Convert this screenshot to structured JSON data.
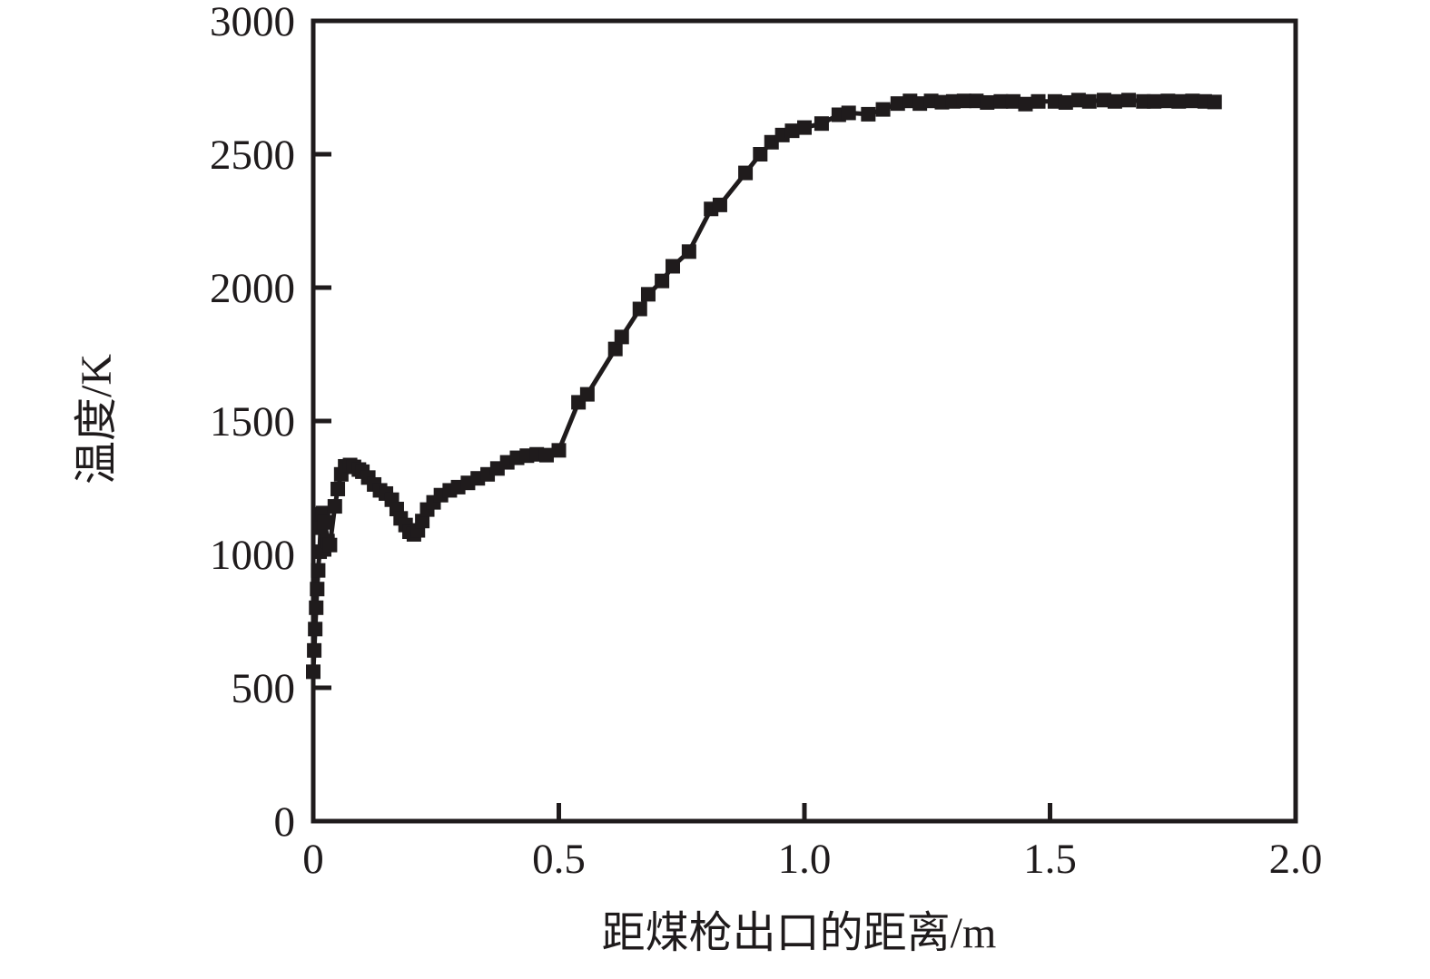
{
  "figure": {
    "background_color": "#ffffff",
    "line_color": "#1f1b1c",
    "marker_shape": "square"
  },
  "chart_data": {
    "type": "line",
    "title": "",
    "xlabel": "距煤枪出口的距离/m",
    "ylabel": "温度/K",
    "xlim": [
      0,
      2.0
    ],
    "ylim": [
      0,
      3000
    ],
    "grid": false,
    "legend": "none",
    "x_ticks": [
      {
        "value": 0,
        "label": "0"
      },
      {
        "value": 0.5,
        "label": "0.5"
      },
      {
        "value": 1.0,
        "label": "1.0"
      },
      {
        "value": 1.5,
        "label": "1.5"
      },
      {
        "value": 2.0,
        "label": "2.0"
      }
    ],
    "y_ticks": [
      {
        "value": 0,
        "label": "0"
      },
      {
        "value": 500,
        "label": "500"
      },
      {
        "value": 1000,
        "label": "1000"
      },
      {
        "value": 1500,
        "label": "1500"
      },
      {
        "value": 2000,
        "label": "2000"
      },
      {
        "value": 2500,
        "label": "2500"
      },
      {
        "value": 3000,
        "label": "3000"
      }
    ],
    "series": [
      {
        "name": "温度",
        "points": [
          [
            0.0,
            560
          ],
          [
            0.002,
            640
          ],
          [
            0.004,
            720
          ],
          [
            0.006,
            800
          ],
          [
            0.008,
            870
          ],
          [
            0.01,
            940
          ],
          [
            0.013,
            1010
          ],
          [
            0.015,
            1100
          ],
          [
            0.017,
            1150
          ],
          [
            0.02,
            1155
          ],
          [
            0.024,
            1120
          ],
          [
            0.029,
            1050
          ],
          [
            0.034,
            1035
          ],
          [
            0.044,
            1180
          ],
          [
            0.05,
            1245
          ],
          [
            0.057,
            1300
          ],
          [
            0.065,
            1330
          ],
          [
            0.075,
            1335
          ],
          [
            0.083,
            1328
          ],
          [
            0.093,
            1318
          ],
          [
            0.1,
            1310
          ],
          [
            0.112,
            1288
          ],
          [
            0.124,
            1262
          ],
          [
            0.136,
            1240
          ],
          [
            0.148,
            1228
          ],
          [
            0.16,
            1205
          ],
          [
            0.17,
            1170
          ],
          [
            0.178,
            1135
          ],
          [
            0.188,
            1110
          ],
          [
            0.196,
            1085
          ],
          [
            0.205,
            1075
          ],
          [
            0.213,
            1090
          ],
          [
            0.222,
            1125
          ],
          [
            0.232,
            1168
          ],
          [
            0.245,
            1195
          ],
          [
            0.26,
            1222
          ],
          [
            0.278,
            1240
          ],
          [
            0.295,
            1252
          ],
          [
            0.315,
            1268
          ],
          [
            0.335,
            1285
          ],
          [
            0.355,
            1300
          ],
          [
            0.375,
            1322
          ],
          [
            0.395,
            1345
          ],
          [
            0.415,
            1362
          ],
          [
            0.435,
            1370
          ],
          [
            0.455,
            1375
          ],
          [
            0.475,
            1372
          ],
          [
            0.5,
            1390
          ],
          [
            0.54,
            1570
          ],
          [
            0.558,
            1600
          ],
          [
            0.615,
            1770
          ],
          [
            0.628,
            1815
          ],
          [
            0.665,
            1920
          ],
          [
            0.682,
            1975
          ],
          [
            0.71,
            2025
          ],
          [
            0.732,
            2080
          ],
          [
            0.765,
            2135
          ],
          [
            0.81,
            2295
          ],
          [
            0.828,
            2310
          ],
          [
            0.88,
            2430
          ],
          [
            0.91,
            2500
          ],
          [
            0.933,
            2545
          ],
          [
            0.955,
            2572
          ],
          [
            0.975,
            2588
          ],
          [
            1.0,
            2600
          ],
          [
            1.035,
            2615
          ],
          [
            1.07,
            2648
          ],
          [
            1.09,
            2655
          ],
          [
            1.13,
            2650
          ],
          [
            1.16,
            2668
          ],
          [
            1.19,
            2690
          ],
          [
            1.215,
            2700
          ],
          [
            1.235,
            2690
          ],
          [
            1.258,
            2700
          ],
          [
            1.28,
            2695
          ],
          [
            1.303,
            2698
          ],
          [
            1.325,
            2700
          ],
          [
            1.35,
            2700
          ],
          [
            1.372,
            2694
          ],
          [
            1.4,
            2698
          ],
          [
            1.425,
            2698
          ],
          [
            1.45,
            2688
          ],
          [
            1.476,
            2698
          ],
          [
            1.51,
            2698
          ],
          [
            1.532,
            2694
          ],
          [
            1.558,
            2703
          ],
          [
            1.58,
            2698
          ],
          [
            1.61,
            2703
          ],
          [
            1.632,
            2698
          ],
          [
            1.66,
            2703
          ],
          [
            1.69,
            2698
          ],
          [
            1.712,
            2698
          ],
          [
            1.74,
            2700
          ],
          [
            1.762,
            2698
          ],
          [
            1.79,
            2700
          ],
          [
            1.815,
            2698
          ],
          [
            1.835,
            2696
          ]
        ]
      }
    ]
  }
}
